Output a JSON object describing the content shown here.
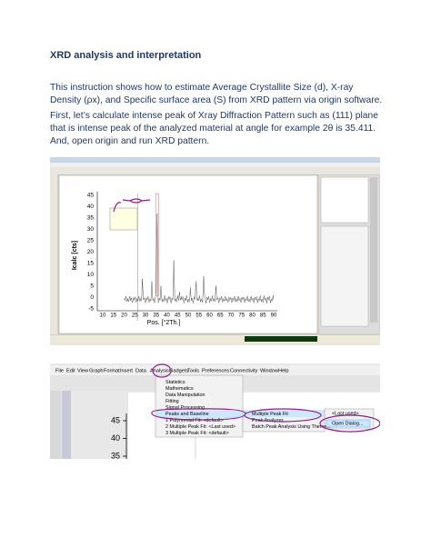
{
  "heading": "XRD analysis and interpretation",
  "paragraphs": [
    "This instruction shows how to estimate Average Crystallite Size (d), X-ray Density (ρx), and Specific surface area (S) from XRD pattern via origin software.",
    "First, let’s calculate intense peak of Xray Diffraction Pattern such as (111) plane that is intense peak of the analyzed material at angle for example 2θ is 35.411. And, open origin and run XRD pattern."
  ],
  "screenshot_1": {
    "y_axis_label": "Icalc [cts]",
    "x_axis_label": "Pos. [°2Th.]",
    "y_ticks": [
      45,
      40,
      35,
      30,
      25,
      20,
      15,
      10,
      5,
      0,
      -5
    ],
    "x_ticks": [
      10,
      15,
      20,
      25,
      30,
      35,
      40,
      45,
      50,
      55,
      60,
      65,
      70,
      75,
      80,
      85,
      90
    ]
  },
  "screenshot_2": {
    "menu_bar": [
      "File",
      "Edit",
      "View",
      "Graph",
      "Format",
      "Insert",
      "Data",
      "Analysis",
      "Gadgets",
      "Tools",
      "Preferences",
      "Connectivity",
      "Window",
      "Help"
    ],
    "menu": [
      "Statistics",
      "Mathematics",
      "Data Manipulation",
      "Fitting",
      "Signal Processing",
      "Peaks and Baseline",
      "1 Polynomial Fit: <default>",
      "2 Multiple Peak Fit: <Last used>",
      "3 Multiple Peak Fit: <default>"
    ],
    "submenu": [
      "Multiple Peak Fit",
      "Peak Analyzer",
      "Batch Peak Analysis Using Theme..."
    ],
    "subsubmenu": [
      "<Last used>",
      "Open Dialog..."
    ],
    "y_ticks": [
      45,
      40,
      35
    ]
  }
}
